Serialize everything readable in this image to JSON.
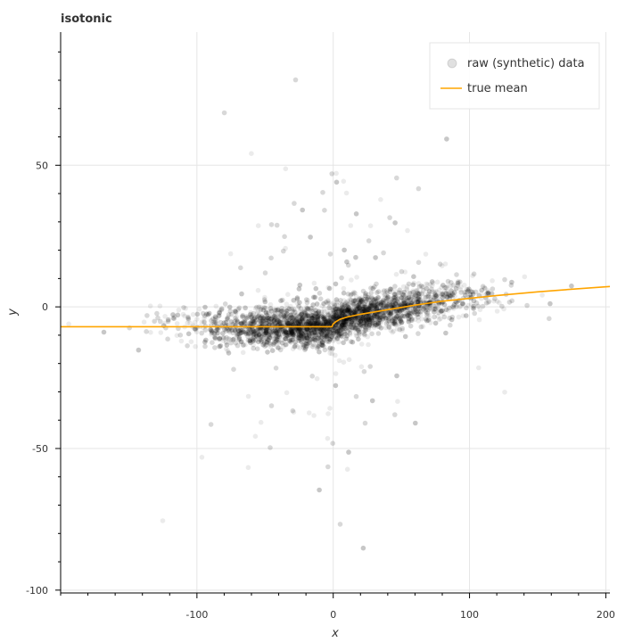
{
  "chart_data": {
    "type": "scatter",
    "title": "isotonic",
    "xlabel": "x",
    "ylabel": "y",
    "xlim": [
      -200,
      203
    ],
    "ylim": [
      -101,
      97
    ],
    "xticks": [
      -100,
      0,
      100,
      200
    ],
    "yticks": [
      -100,
      -50,
      0,
      50
    ],
    "grid": true,
    "legend": "top-right",
    "series": [
      {
        "name": "raw (synthetic) data",
        "kind": "scatter",
        "color": "#000000"
      },
      {
        "name": "true mean",
        "kind": "line",
        "color": "#ffa500",
        "x": [
          -200,
          -100,
          -50,
          -1,
          0,
          2,
          5,
          10,
          20,
          30,
          40,
          50,
          60,
          70,
          80,
          100,
          120,
          150,
          180,
          203
        ],
        "y": [
          -7,
          -7,
          -7,
          -7,
          -6,
          -5.2,
          -4.4,
          -3.6,
          -2.6,
          -1.8,
          -1.0,
          -0.2,
          0.6,
          1.3,
          2.0,
          3.0,
          4.0,
          5.3,
          6.4,
          7.2
        ]
      }
    ],
    "notes_visible": []
  }
}
